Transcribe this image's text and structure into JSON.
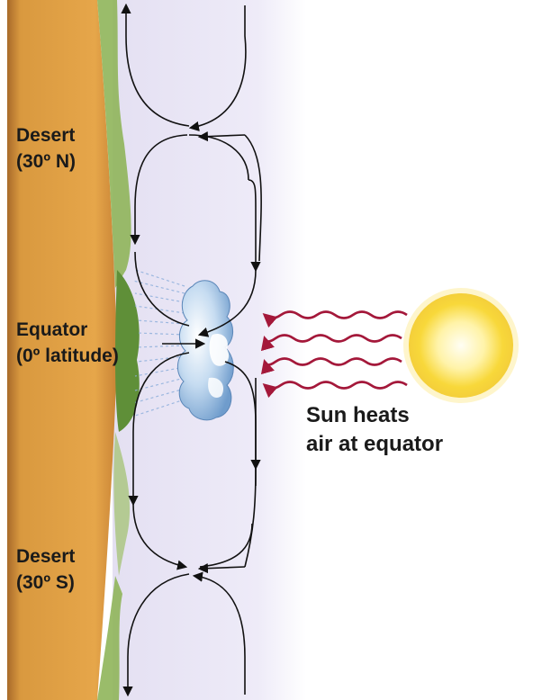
{
  "labels": {
    "desert_north": {
      "name": "Desert",
      "latitude": "(30º N)"
    },
    "equator": {
      "name": "Equator",
      "latitude": "(0º latitude)"
    },
    "desert_south": {
      "name": "Desert",
      "latitude": "(30º S)"
    },
    "sun_caption": {
      "line1": "Sun heats",
      "line2": "air at equator"
    }
  },
  "colors": {
    "land": "#d9993f",
    "land_edge": "#a86a2a",
    "vegetation": "#6f9f45",
    "atmosphere": "#ece9f6",
    "heat_waves": "#a4183a",
    "sun_core": "#fffbe0",
    "sun_glow": "#f7d531",
    "cloud": "#9ec4e6",
    "circulation_arrows": "#111111"
  },
  "icons": {
    "sun": "sun-icon",
    "cloud": "rain-cloud-icon"
  }
}
